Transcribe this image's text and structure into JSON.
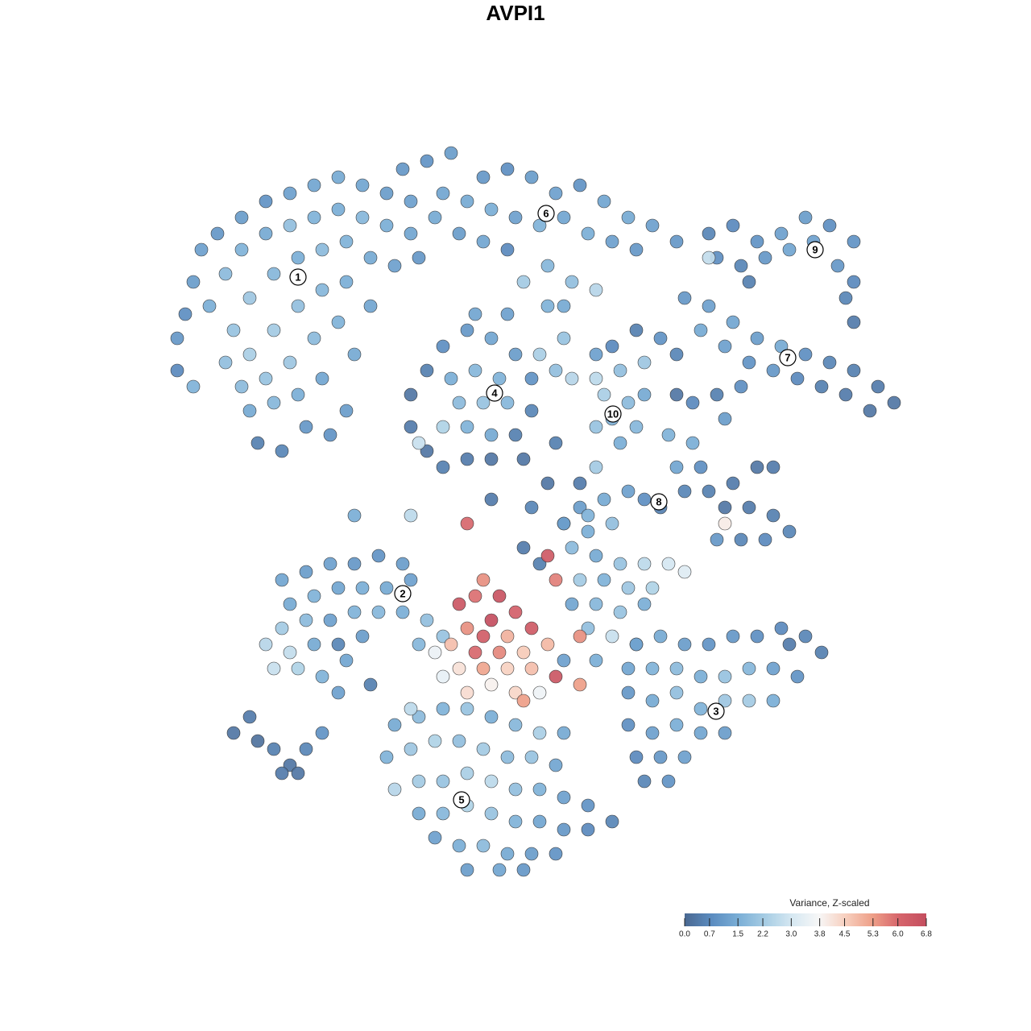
{
  "chart_data": {
    "type": "scatter",
    "title": "AVPI1",
    "xlim": [
      0,
      128
    ],
    "ylim": [
      128,
      0
    ],
    "x": [
      22,
      23,
      24,
      25,
      27,
      30,
      33,
      36,
      39,
      42,
      45,
      48,
      51,
      54,
      26,
      28,
      30,
      33,
      36,
      39,
      42,
      45,
      48,
      51,
      29,
      31,
      34,
      37,
      40,
      43,
      46,
      49,
      52,
      28,
      31,
      34,
      37,
      40,
      43,
      30,
      33,
      36,
      39,
      42,
      31,
      34,
      37,
      40,
      32,
      35,
      38,
      41,
      43,
      22,
      24,
      44,
      46,
      50,
      53,
      56,
      60,
      63,
      66,
      69,
      72,
      75,
      78,
      81,
      84,
      55,
      58,
      61,
      64,
      67,
      70,
      73,
      76,
      79,
      57,
      60,
      63,
      68,
      71,
      65,
      70,
      74,
      88,
      91,
      94,
      97,
      100,
      103,
      106,
      89,
      92,
      95,
      98,
      101,
      104,
      106,
      93,
      88,
      105,
      106,
      85,
      88,
      91,
      94,
      97,
      100,
      103,
      106,
      109,
      111,
      87,
      90,
      93,
      96,
      99,
      102,
      105,
      108,
      82,
      79,
      76,
      74,
      84,
      86,
      89,
      92,
      90,
      84,
      51,
      51,
      53,
      55,
      58,
      61,
      64,
      66,
      66,
      64,
      61,
      58,
      55,
      53,
      56,
      59,
      62,
      57,
      60,
      63,
      55,
      58,
      61,
      52,
      59,
      63,
      68,
      70,
      67,
      71,
      69,
      74,
      77,
      80,
      75,
      78,
      76,
      79,
      74,
      77,
      80,
      83,
      86,
      84,
      87,
      85,
      88,
      91,
      94,
      96,
      90,
      93,
      96,
      98,
      89,
      92,
      95,
      90,
      78,
      80,
      75,
      72,
      73,
      76,
      70,
      82,
      35,
      38,
      41,
      44,
      47,
      50,
      36,
      39,
      42,
      45,
      48,
      51,
      35,
      38,
      41,
      44,
      47,
      50,
      53,
      33,
      36,
      39,
      42,
      45,
      34,
      37,
      40,
      43,
      42,
      46,
      52,
      55,
      71,
      74,
      77,
      80,
      83,
      85,
      72,
      75,
      78,
      81,
      71,
      74,
      77,
      80,
      73,
      76,
      79,
      70,
      74,
      67,
      65,
      70,
      73,
      79,
      82,
      85,
      88,
      91,
      94,
      97,
      100,
      102,
      78,
      81,
      84,
      87,
      90,
      93,
      96,
      99,
      78,
      81,
      84,
      87,
      90,
      93,
      96,
      78,
      81,
      84,
      87,
      90,
      79,
      82,
      85,
      80,
      83,
      98,
      49,
      52,
      55,
      58,
      61,
      64,
      67,
      70,
      48,
      51,
      54,
      57,
      60,
      63,
      66,
      69,
      49,
      52,
      55,
      58,
      61,
      64,
      67,
      70,
      73,
      52,
      55,
      58,
      61,
      64,
      67,
      70,
      73,
      76,
      54,
      57,
      60,
      63,
      66,
      69,
      58,
      62,
      65,
      51,
      29,
      31,
      32,
      34,
      36,
      38,
      35,
      37,
      40,
      44,
      51,
      61,
      66,
      68,
      65,
      69,
      74,
      72,
      57,
      59,
      62,
      64,
      61,
      58,
      60,
      63,
      66,
      56,
      59,
      62,
      65,
      68,
      57,
      60,
      63,
      66,
      69,
      58,
      61,
      64,
      67,
      55,
      54,
      65,
      68,
      69,
      60,
      58,
      72,
      72
    ],
    "y": [
      42,
      39,
      35,
      31,
      29,
      27,
      25,
      24,
      23,
      22,
      23,
      24,
      25,
      27,
      38,
      34,
      31,
      29,
      28,
      27,
      26,
      27,
      28,
      29,
      41,
      37,
      34,
      32,
      31,
      30,
      32,
      33,
      32,
      45,
      44,
      41,
      38,
      36,
      35,
      48,
      47,
      45,
      42,
      40,
      51,
      50,
      49,
      47,
      55,
      56,
      53,
      54,
      51,
      46,
      48,
      44,
      38,
      21,
      20,
      19,
      22,
      21,
      22,
      24,
      23,
      25,
      27,
      28,
      30,
      24,
      25,
      26,
      27,
      28,
      27,
      29,
      30,
      31,
      29,
      30,
      31,
      33,
      35,
      35,
      38,
      36,
      29,
      28,
      30,
      29,
      27,
      28,
      30,
      32,
      33,
      32,
      31,
      30,
      33,
      35,
      35,
      32,
      37,
      40,
      37,
      38,
      40,
      42,
      43,
      44,
      45,
      46,
      48,
      50,
      41,
      43,
      45,
      46,
      47,
      48,
      49,
      51,
      42,
      41,
      43,
      44,
      44,
      50,
      49,
      48,
      52,
      49,
      49,
      53,
      56,
      58,
      57,
      57,
      54,
      51,
      47,
      44,
      42,
      41,
      43,
      46,
      47,
      46,
      47,
      50,
      50,
      50,
      53,
      53,
      54,
      55,
      39,
      39,
      38,
      42,
      44,
      47,
      46,
      47,
      46,
      45,
      49,
      50,
      52,
      53,
      53,
      55,
      49,
      54,
      55,
      58,
      58,
      61,
      61,
      60,
      58,
      58,
      63,
      63,
      64,
      66,
      67,
      67,
      67,
      65,
      61,
      62,
      62,
      63,
      66,
      65,
      65,
      63,
      72,
      71,
      70,
      70,
      69,
      70,
      75,
      74,
      73,
      73,
      73,
      72,
      78,
      77,
      77,
      76,
      76,
      76,
      77,
      80,
      81,
      80,
      80,
      79,
      83,
      83,
      84,
      82,
      86,
      85,
      80,
      79,
      68,
      69,
      70,
      70,
      70,
      71,
      72,
      72,
      73,
      73,
      75,
      75,
      76,
      75,
      78,
      79,
      80,
      82,
      82,
      70,
      68,
      65,
      64,
      80,
      79,
      80,
      80,
      79,
      79,
      78,
      79,
      81,
      83,
      83,
      83,
      84,
      84,
      83,
      83,
      84,
      86,
      87,
      86,
      88,
      87,
      87,
      87,
      90,
      91,
      90,
      91,
      91,
      94,
      94,
      94,
      97,
      97,
      80,
      90,
      89,
      88,
      88,
      89,
      90,
      91,
      91,
      94,
      93,
      92,
      92,
      93,
      94,
      94,
      95,
      98,
      97,
      97,
      96,
      97,
      98,
      98,
      99,
      100,
      101,
      101,
      100,
      101,
      102,
      102,
      103,
      103,
      102,
      104,
      105,
      105,
      106,
      106,
      106,
      108,
      108,
      108,
      88,
      91,
      89,
      92,
      93,
      95,
      93,
      96,
      96,
      91,
      64,
      64,
      62,
      63,
      60,
      57,
      55,
      58,
      60,
      75,
      74,
      74,
      76,
      77,
      78,
      79,
      79,
      78,
      80,
      81,
      81,
      81,
      80,
      83,
      83,
      83,
      83,
      84,
      86,
      85,
      86,
      86,
      84,
      81,
      87,
      69,
      72,
      72,
      65,
      79,
      85
    ],
    "values": [
      1.0,
      0.8,
      1.1,
      1.2,
      1.0,
      1.1,
      0.9,
      1.2,
      1.3,
      1.4,
      1.3,
      1.1,
      1.2,
      1.4,
      1.5,
      1.8,
      1.6,
      1.4,
      1.9,
      1.6,
      1.5,
      1.7,
      1.5,
      1.3,
      2.0,
      2.1,
      1.7,
      1.5,
      1.8,
      1.6,
      1.4,
      1.2,
      1.0,
      1.9,
      2.3,
      2.2,
      1.9,
      1.7,
      1.5,
      1.8,
      2.0,
      2.1,
      1.8,
      1.6,
      1.4,
      1.7,
      1.5,
      1.3,
      0.5,
      0.6,
      1.0,
      0.9,
      1.1,
      0.7,
      1.6,
      1.4,
      1.3,
      1.0,
      0.9,
      1.1,
      1.0,
      0.8,
      1.1,
      1.2,
      0.9,
      1.3,
      1.4,
      1.2,
      1.0,
      1.3,
      1.4,
      1.5,
      1.2,
      1.6,
      1.3,
      1.5,
      1.2,
      1.0,
      1.1,
      1.3,
      0.7,
      1.7,
      1.9,
      2.2,
      1.4,
      2.5,
      0.6,
      0.7,
      0.9,
      1.2,
      1.1,
      0.8,
      0.9,
      0.8,
      0.6,
      1.0,
      1.3,
      1.2,
      1.0,
      0.7,
      0.5,
      2.7,
      0.6,
      0.4,
      1.0,
      1.2,
      1.3,
      1.1,
      1.4,
      0.8,
      0.6,
      0.5,
      0.4,
      0.3,
      1.4,
      1.2,
      0.9,
      1.0,
      0.7,
      0.5,
      0.4,
      0.3,
      0.9,
      0.5,
      0.7,
      1.2,
      0.6,
      0.7,
      0.5,
      0.8,
      1.1,
      0.3,
      0.3,
      0.4,
      0.3,
      0.5,
      0.4,
      0.3,
      0.5,
      0.6,
      0.9,
      1.1,
      1.3,
      1.0,
      0.8,
      0.5,
      1.5,
      1.7,
      1.6,
      1.8,
      2.0,
      1.7,
      2.4,
      1.6,
      1.4,
      2.8,
      1.3,
      1.2,
      1.6,
      2.0,
      2.3,
      2.5,
      1.9,
      2.6,
      1.9,
      2.1,
      2.3,
      1.8,
      1.6,
      1.7,
      2.0,
      1.5,
      1.4,
      1.6,
      1.5,
      1.3,
      0.8,
      0.6,
      0.5,
      0.4,
      0.3,
      0.4,
      0.3,
      0.4,
      0.5,
      0.6,
      1.0,
      0.6,
      0.7,
      4.0,
      1.2,
      0.8,
      1.4,
      1.1,
      1.5,
      1.9,
      0.5,
      0.5,
      1.3,
      1.1,
      1.2,
      1.0,
      0.9,
      1.1,
      1.4,
      1.6,
      1.3,
      1.5,
      1.4,
      1.2,
      2.2,
      1.8,
      1.2,
      1.6,
      1.7,
      1.5,
      1.9,
      2.5,
      2.7,
      1.4,
      0.6,
      1.1,
      2.8,
      2.4,
      1.6,
      1.3,
      1.2,
      0.5,
      1.7,
      2.0,
      1.8,
      1.4,
      2.0,
      2.6,
      3.0,
      3.2,
      2.2,
      1.6,
      2.1,
      2.4,
      1.3,
      1.7,
      2.0,
      1.5,
      1.9,
      2.8,
      2.2,
      1.2,
      1.5,
      0.5,
      0.4,
      1.2,
      1.6,
      1.2,
      1.4,
      1.1,
      0.9,
      1.0,
      0.8,
      0.7,
      0.6,
      0.5,
      1.3,
      1.6,
      1.8,
      1.5,
      2.0,
      1.7,
      1.2,
      0.9,
      1.0,
      1.4,
      1.9,
      1.6,
      2.1,
      2.2,
      1.5,
      0.8,
      1.2,
      1.5,
      1.3,
      1.1,
      0.7,
      1.0,
      1.2,
      0.6,
      0.9,
      0.4,
      1.4,
      1.8,
      1.6,
      2.0,
      1.5,
      1.7,
      2.3,
      1.4,
      1.6,
      2.1,
      2.4,
      1.9,
      2.2,
      1.8,
      2.0,
      1.3,
      2.5,
      2.2,
      2.0,
      2.3,
      2.6,
      1.9,
      1.6,
      1.2,
      0.9,
      1.4,
      1.7,
      2.4,
      2.0,
      1.6,
      1.3,
      1.0,
      0.7,
      0.6,
      1.2,
      1.5,
      1.8,
      1.4,
      1.1,
      0.9,
      1.1,
      1.3,
      1.0,
      2.6,
      0.3,
      0.4,
      0.2,
      0.5,
      0.3,
      0.6,
      0.4,
      0.3,
      0.9,
      1.5,
      2.6,
      0.4,
      0.6,
      0.3,
      0.3,
      0.5,
      2.2,
      0.4,
      6.5,
      5.9,
      6.6,
      6.2,
      6.8,
      5.5,
      6.3,
      5.0,
      6.4,
      4.8,
      6.0,
      5.6,
      4.6,
      4.9,
      4.2,
      5.2,
      4.5,
      4.8,
      6.5,
      4.3,
      3.9,
      4.4,
      3.6,
      3.4,
      3.5,
      5.3,
      6.4,
      5.7,
      5.5,
      6.0,
      5.5,
      5.3
    ],
    "clusters": [
      {
        "label": "1",
        "x": 37,
        "y": 34.4
      },
      {
        "label": "2",
        "x": 50,
        "y": 73.7
      },
      {
        "label": "3",
        "x": 88.9,
        "y": 88.3
      },
      {
        "label": "4",
        "x": 61.4,
        "y": 48.8
      },
      {
        "label": "5",
        "x": 57.3,
        "y": 99.3
      },
      {
        "label": "6",
        "x": 67.8,
        "y": 26.5
      },
      {
        "label": "7",
        "x": 97.8,
        "y": 44.4
      },
      {
        "label": "8",
        "x": 81.8,
        "y": 62.3
      },
      {
        "label": "9",
        "x": 101.2,
        "y": 31
      },
      {
        "label": "10",
        "x": 76.1,
        "y": 51.4
      }
    ],
    "colorbar_title": "Variance, Z-scaled",
    "clim": [
      0,
      6.8
    ],
    "cticks": [
      {
        "value": 0,
        "label": "0.0"
      },
      0.7,
      1.5,
      2.2,
      {
        "value": 3,
        "label": "3.0"
      },
      3.8,
      4.5,
      5.3,
      {
        "value": 6,
        "label": "6.0"
      },
      6.8
    ],
    "colormap": [
      "#4a6891",
      "#5b8cc0",
      "#7aaed6",
      "#a7cde4",
      "#d6e8f2",
      "#f7f7f7",
      "#f7cfbe",
      "#ee9f88",
      "#d6646b",
      "#c44e5f"
    ]
  }
}
